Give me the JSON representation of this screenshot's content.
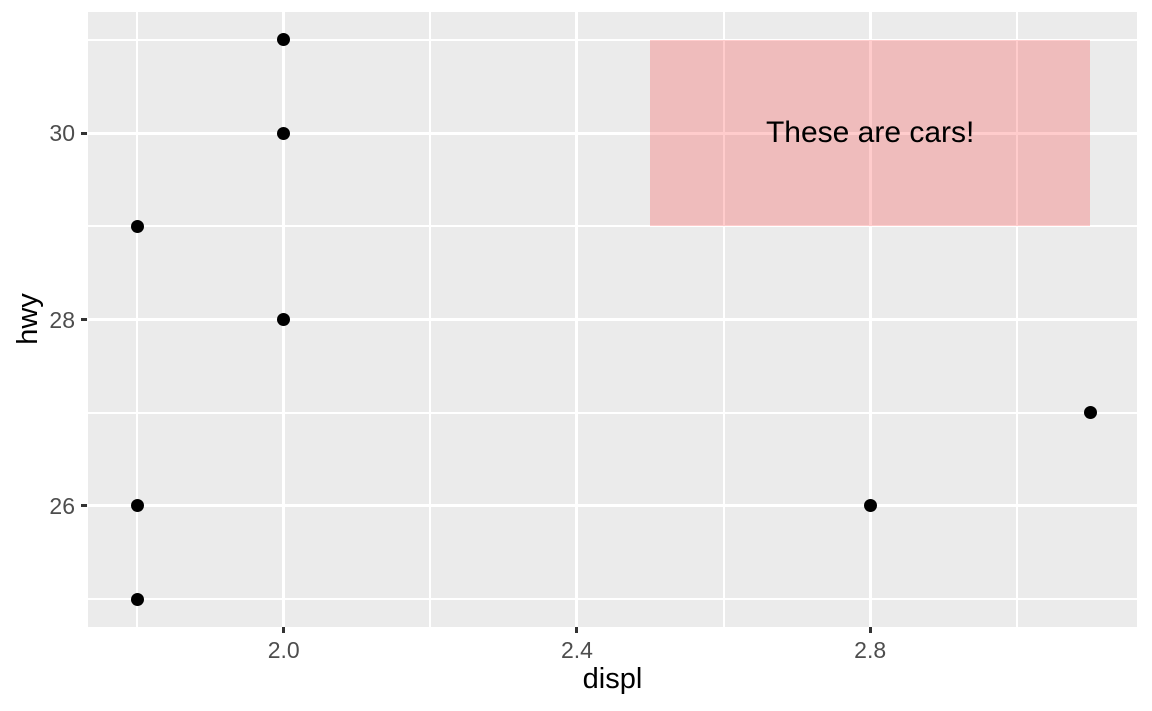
{
  "chart_data": {
    "type": "scatter",
    "title": "",
    "xlabel": "displ",
    "ylabel": "hwy",
    "xlim": [
      1.733,
      3.164
    ],
    "ylim": [
      24.7,
      31.3
    ],
    "grid": true,
    "legend": "none",
    "x_major_ticks": [
      2.0,
      2.4,
      2.8
    ],
    "x_tick_labels": [
      "2.0",
      "2.4",
      "2.8"
    ],
    "x_minor_ticks": [
      1.8,
      2.2,
      2.6,
      3.0
    ],
    "y_major_ticks": [
      26,
      28,
      30
    ],
    "y_tick_labels": [
      "26",
      "28",
      "30"
    ],
    "y_minor_ticks": [
      25,
      27,
      29,
      31
    ],
    "points": [
      {
        "x": 1.8,
        "y": 29
      },
      {
        "x": 1.8,
        "y": 26
      },
      {
        "x": 1.8,
        "y": 25
      },
      {
        "x": 2.0,
        "y": 31
      },
      {
        "x": 2.0,
        "y": 30
      },
      {
        "x": 2.0,
        "y": 28
      },
      {
        "x": 2.8,
        "y": 26
      },
      {
        "x": 3.1,
        "y": 27
      }
    ],
    "annotations": {
      "rect": {
        "xmin": 2.5,
        "xmax": 3.1,
        "ymin": 29,
        "ymax": 31,
        "fill": "#FF0000",
        "alpha": 0.2
      },
      "text": {
        "x": 2.8,
        "y": 30,
        "label": "These are cars!"
      }
    },
    "colors": {
      "panel_background": "#EBEBEB",
      "gridline": "#FFFFFF",
      "point": "#000000",
      "tick_label": "#4D4D4D",
      "axis_title": "#000000",
      "tick_mark": "#333333",
      "annotation_rect_rendered": "#EFBCBC",
      "annotation_text": "#000000"
    }
  }
}
